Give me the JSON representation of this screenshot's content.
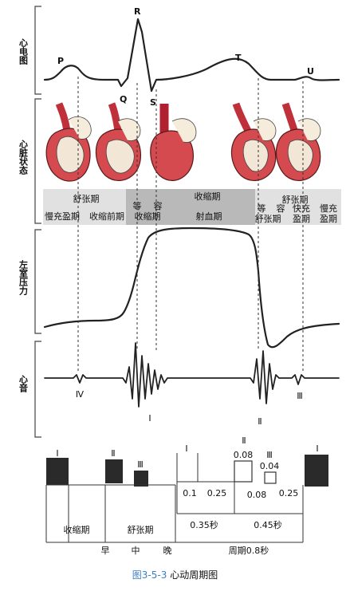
{
  "row_labels": {
    "ecg": "心电图",
    "heart": "心脏状态",
    "pressure": "左室压力",
    "sound": "心音"
  },
  "ecg_waves": {
    "p": "P",
    "r": "R",
    "q": "Q",
    "s": "S",
    "t": "T",
    "u": "U"
  },
  "phase_band": {
    "diastole": "舒张期",
    "systole": "收缩期",
    "slow_fill": "慢充盈期",
    "atrial_sys": "收缩前期",
    "iso_contract_1": "等",
    "iso_contract_2": "容",
    "iso_contract_3": "收缩期",
    "ejection": "射血期",
    "iso_relax_1": "等",
    "iso_relax_2": "舒张期",
    "diastole2": "舒张期",
    "rapid_fill_1": "容",
    "rapid_fill_2": "快充",
    "rapid_fill_3": "盈期",
    "slow_fill2_1": "慢充",
    "slow_fill2_2": "盈期"
  },
  "heart_sounds": {
    "s4": "Ⅳ",
    "s1": "Ⅰ",
    "s2": "Ⅱ",
    "s3": "Ⅲ"
  },
  "timing": {
    "bar_s1": "Ⅰ",
    "bar_s2": "Ⅱ",
    "bar_s3": "Ⅲ",
    "systole": "收缩期",
    "diastole": "舒张期",
    "early": "早",
    "mid": "中",
    "late": "晚",
    "right_s1": "Ⅰ",
    "right_s2": "Ⅱ",
    "right_s3": "Ⅲ",
    "v008a": "0.08",
    "v004": "0.04",
    "v01": "0.1",
    "v025a": "0.25",
    "v008b": "0.08",
    "v025b": "0.25",
    "sec035": "0.35秒",
    "sec045": "0.45秒",
    "period": "周期0.8秒",
    "right_s1b": "Ⅰ"
  },
  "caption": {
    "number": "图3-5-3",
    "title": "心动周期图"
  }
}
